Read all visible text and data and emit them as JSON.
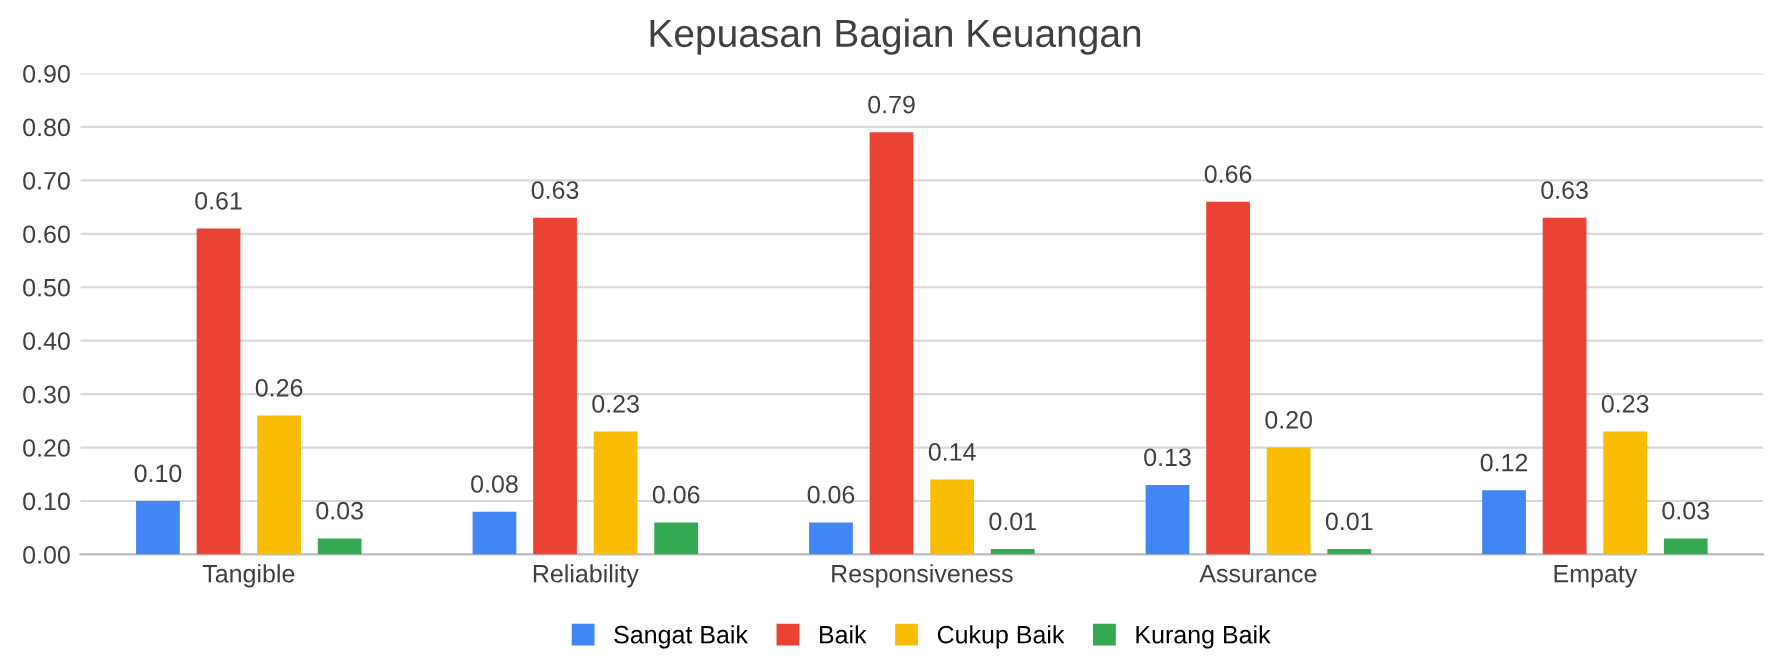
{
  "chart_data": {
    "type": "bar",
    "title": "Kepuasan Bagian Keuangan",
    "categories": [
      "Tangible",
      "Reliability",
      "Responsiveness",
      "Assurance",
      "Empaty"
    ],
    "series": [
      {
        "name": "Sangat Baik",
        "color": "#4285f4",
        "values": [
          0.1,
          0.08,
          0.06,
          0.13,
          0.12
        ],
        "value_labels": [
          "0.10",
          "0.08",
          "0.06",
          "0.13",
          "0.12"
        ]
      },
      {
        "name": "Baik",
        "color": "#ea4335",
        "values": [
          0.61,
          0.63,
          0.79,
          0.66,
          0.63
        ],
        "value_labels": [
          "0.61",
          "0.63",
          "0.79",
          "0.66",
          "0.63"
        ]
      },
      {
        "name": "Cukup Baik",
        "color": "#fbbc04",
        "values": [
          0.26,
          0.23,
          0.14,
          0.2,
          0.23
        ],
        "value_labels": [
          "0.26",
          "0.23",
          "0.14",
          "0.20",
          "0.23"
        ]
      },
      {
        "name": "Kurang Baik",
        "color": "#34a853",
        "values": [
          0.03,
          0.06,
          0.01,
          0.01,
          0.03
        ],
        "value_labels": [
          "0.03",
          "0.06",
          "0.01",
          "0.01",
          "0.03"
        ]
      }
    ],
    "ylim": [
      0,
      0.9
    ],
    "yticks": [
      {
        "value": 0,
        "label": "0.00"
      },
      {
        "value": 0.1,
        "label": "0.10"
      },
      {
        "value": 0.2,
        "label": "0.20"
      },
      {
        "value": 0.3,
        "label": "0.30"
      },
      {
        "value": 0.4,
        "label": "0.40"
      },
      {
        "value": 0.5,
        "label": "0.50"
      },
      {
        "value": 0.6,
        "label": "0.60"
      },
      {
        "value": 0.7,
        "label": "0.70"
      },
      {
        "value": 0.8,
        "label": "0.80"
      },
      {
        "value": 0.9,
        "label": "0.90"
      }
    ],
    "grid": "y",
    "legend": "bottom"
  }
}
